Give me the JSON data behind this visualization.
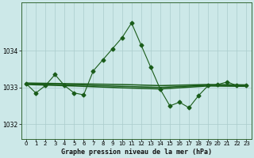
{
  "title": "Graphe pression niveau de la mer (hPa)",
  "background_color": "#cce8e8",
  "grid_color": "#aacccc",
  "line_color": "#1a5c1a",
  "ylim": [
    1031.6,
    1035.3
  ],
  "yticks": [
    1032,
    1033,
    1034
  ],
  "xlim": [
    -0.5,
    23.5
  ],
  "xticks": [
    0,
    1,
    2,
    3,
    4,
    5,
    6,
    7,
    8,
    9,
    10,
    11,
    12,
    13,
    14,
    15,
    16,
    17,
    18,
    19,
    20,
    21,
    22,
    23
  ],
  "series": [
    {
      "x": [
        0,
        1,
        2,
        3,
        4,
        5,
        6,
        7,
        8,
        9,
        10,
        11,
        12,
        13,
        14,
        15,
        16,
        17,
        18,
        19,
        20,
        21,
        22,
        23
      ],
      "y": [
        1033.1,
        1032.85,
        1033.05,
        1033.35,
        1033.05,
        1032.85,
        1032.8,
        1033.45,
        1033.75,
        1034.05,
        1034.35,
        1034.75,
        1034.15,
        1033.55,
        1032.95,
        1032.5,
        1032.6,
        1032.45,
        1032.78,
        1033.05,
        1033.08,
        1033.15,
        1033.05,
        1033.05
      ],
      "marker": "D",
      "linewidth": 0.8,
      "markersize": 2.5,
      "has_marker": true
    },
    {
      "x": [
        0,
        5,
        10,
        14,
        19,
        23
      ],
      "y": [
        1033.12,
        1033.1,
        1033.08,
        1033.05,
        1033.08,
        1033.07
      ],
      "marker": null,
      "linewidth": 1.1,
      "has_marker": false
    },
    {
      "x": [
        0,
        5,
        10,
        14,
        19,
        23
      ],
      "y": [
        1033.1,
        1033.07,
        1033.03,
        1033.0,
        1033.06,
        1033.05
      ],
      "marker": null,
      "linewidth": 1.1,
      "has_marker": false
    },
    {
      "x": [
        0,
        5,
        10,
        14,
        19,
        23
      ],
      "y": [
        1033.08,
        1033.04,
        1032.99,
        1032.96,
        1033.04,
        1033.03
      ],
      "marker": null,
      "linewidth": 1.1,
      "has_marker": false
    }
  ]
}
